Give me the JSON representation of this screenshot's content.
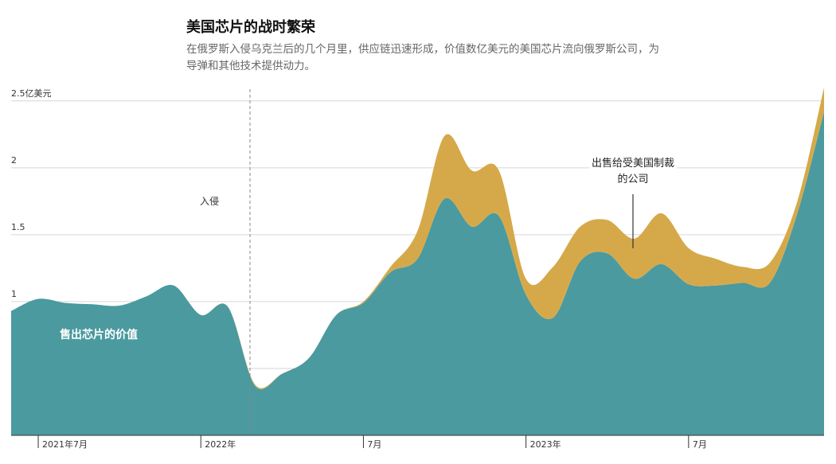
{
  "chart_data": {
    "type": "stacked-area",
    "title": "美国芯片的战时繁荣",
    "subtitle": "在俄罗斯入侵乌克兰后的几个月里，供应链迅速形成，价值数亿美元的美国芯片流向俄罗斯公司，为导弹和其他技术提供动力。",
    "x": [
      "2021-06",
      "2021-07",
      "2021-08",
      "2021-09",
      "2021-10",
      "2021-11",
      "2021-12",
      "2022-01",
      "2022-02",
      "2022-03",
      "2022-04",
      "2022-05",
      "2022-06",
      "2022-07",
      "2022-08",
      "2022-09",
      "2022-10",
      "2022-11",
      "2022-12",
      "2023-01",
      "2023-02",
      "2023-03",
      "2023-04",
      "2023-05",
      "2023-06",
      "2023-07",
      "2023-08",
      "2023-09",
      "2023-10",
      "2023-11",
      "2023-12"
    ],
    "series": [
      {
        "name": "售出芯片的价值",
        "color": "#4a9a9f",
        "values": [
          0.93,
          1.02,
          0.99,
          0.98,
          0.97,
          1.04,
          1.12,
          0.9,
          0.96,
          0.37,
          0.46,
          0.58,
          0.9,
          0.99,
          1.22,
          1.32,
          1.77,
          1.56,
          1.64,
          1.05,
          0.88,
          1.3,
          1.36,
          1.17,
          1.28,
          1.13,
          1.12,
          1.14,
          1.14,
          1.65,
          2.42
        ]
      },
      {
        "name": "出售给受美国制裁的公司",
        "color": "#d5a94a",
        "values": [
          0,
          0,
          0,
          0,
          0,
          0,
          0,
          0,
          0,
          0.01,
          0,
          0,
          0,
          0.01,
          0.04,
          0.21,
          0.47,
          0.42,
          0.34,
          0.12,
          0.38,
          0.26,
          0.25,
          0.3,
          0.38,
          0.27,
          0.2,
          0.12,
          0.15,
          0.09,
          0.18
        ]
      }
    ],
    "annotation": "入侵",
    "ylim": [
      0,
      2.6
    ],
    "yticks": [
      0.5,
      1,
      1.5,
      2,
      {
        "value": 2.5,
        "label": "2.5亿美元"
      }
    ],
    "xticks": [
      {
        "value": "2021-07",
        "label": "2021年7月"
      },
      {
        "value": "2022-01",
        "label": "2022年"
      },
      {
        "value": "2022-07",
        "label": "7月"
      },
      {
        "value": "2023-01",
        "label": "2023年"
      },
      {
        "value": "2023-07",
        "label": "7月"
      }
    ],
    "grid": true
  }
}
